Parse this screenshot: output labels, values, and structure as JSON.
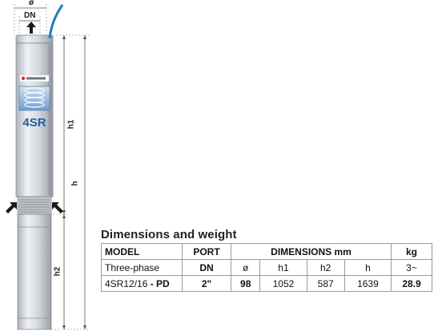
{
  "drawing": {
    "dim_diameter": "ø",
    "dim_dn": "DN",
    "dim_h1": "h1",
    "dim_h": "h",
    "dim_h2": "h2",
    "brand_logo": "pedrollo",
    "model_badge": "4SR"
  },
  "specs": {
    "title": "Dimensions and weight",
    "header1": {
      "model": "MODEL",
      "port": "PORT",
      "dimensions": "DIMENSIONS mm",
      "weight": "kg"
    },
    "header2": {
      "model": "Three-phase",
      "port": "DN",
      "d": "ø",
      "h1": "h1",
      "h2": "h2",
      "h": "h",
      "weight": "3~"
    },
    "rows": [
      {
        "model": "4SR12/16",
        "suffix": "- PD",
        "port": "2\"",
        "d": "98",
        "h1": "1052",
        "h2": "587",
        "h": "1639",
        "weight": "28.9"
      }
    ]
  },
  "colors": {
    "pump_body": "#d3d7dd",
    "badge_blue": "#1f5fa8",
    "cable": "#1d7fc4",
    "arrow": "#1a1a1a"
  }
}
